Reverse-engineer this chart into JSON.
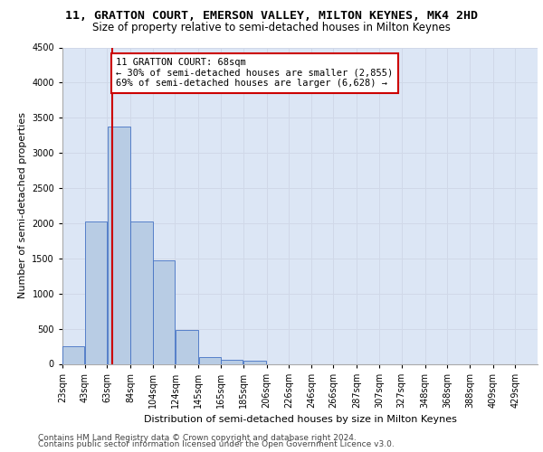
{
  "title_line1": "11, GRATTON COURT, EMERSON VALLEY, MILTON KEYNES, MK4 2HD",
  "title_line2": "Size of property relative to semi-detached houses in Milton Keynes",
  "xlabel": "Distribution of semi-detached houses by size in Milton Keynes",
  "ylabel": "Number of semi-detached properties",
  "footer_line1": "Contains HM Land Registry data © Crown copyright and database right 2024.",
  "footer_line2": "Contains public sector information licensed under the Open Government Licence v3.0.",
  "annotation_title": "11 GRATTON COURT: 68sqm",
  "annotation_line1": "← 30% of semi-detached houses are smaller (2,855)",
  "annotation_line2": "69% of semi-detached houses are larger (6,628) →",
  "property_size_sqm": 68,
  "bar_left_edges": [
    23,
    43,
    63,
    84,
    104,
    124,
    145,
    165,
    185,
    206,
    226,
    246,
    266,
    287,
    307,
    327,
    348,
    368,
    388,
    409
  ],
  "bar_widths": [
    20,
    20,
    21,
    20,
    20,
    21,
    20,
    20,
    21,
    20,
    20,
    20,
    21,
    20,
    20,
    21,
    20,
    20,
    21,
    20
  ],
  "bar_heights": [
    250,
    2020,
    3380,
    2020,
    1470,
    480,
    100,
    60,
    50,
    0,
    0,
    0,
    0,
    0,
    0,
    0,
    0,
    0,
    0,
    0
  ],
  "bar_color": "#b8cce4",
  "bar_edge_color": "#4472c4",
  "vline_x": 68,
  "vline_color": "#cc0000",
  "annotation_box_color": "#cc0000",
  "ylim": [
    0,
    4500
  ],
  "yticks": [
    0,
    500,
    1000,
    1500,
    2000,
    2500,
    3000,
    3500,
    4000,
    4500
  ],
  "xtick_labels": [
    "23sqm",
    "43sqm",
    "63sqm",
    "84sqm",
    "104sqm",
    "124sqm",
    "145sqm",
    "165sqm",
    "185sqm",
    "206sqm",
    "226sqm",
    "246sqm",
    "266sqm",
    "287sqm",
    "307sqm",
    "327sqm",
    "348sqm",
    "368sqm",
    "388sqm",
    "409sqm",
    "429sqm"
  ],
  "xtick_positions": [
    23,
    43,
    63,
    84,
    104,
    124,
    145,
    165,
    185,
    206,
    226,
    246,
    266,
    287,
    307,
    327,
    348,
    368,
    388,
    409,
    429
  ],
  "grid_color": "#d0d8e8",
  "background_color": "#dce6f5",
  "title_fontsize": 9.5,
  "subtitle_fontsize": 8.5,
  "axis_label_fontsize": 8,
  "tick_fontsize": 7,
  "annotation_fontsize": 7.5,
  "footer_fontsize": 6.5,
  "xlim_left": 23,
  "xlim_right": 449
}
